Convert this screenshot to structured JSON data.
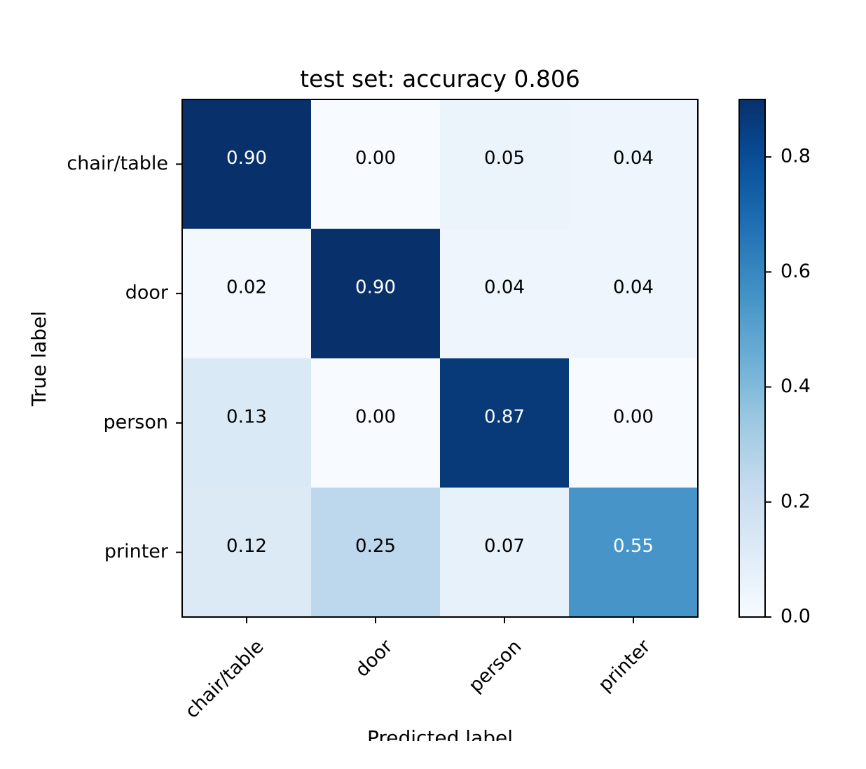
{
  "chart_data": {
    "type": "heatmap",
    "title": "test set: accuracy 0.806",
    "xlabel": "Predicted label",
    "ylabel": "True label",
    "x_categories": [
      "chair/table",
      "door",
      "person",
      "printer"
    ],
    "y_categories": [
      "chair/table",
      "door",
      "person",
      "printer"
    ],
    "values": [
      [
        0.9,
        0.0,
        0.05,
        0.04
      ],
      [
        0.02,
        0.9,
        0.04,
        0.04
      ],
      [
        0.13,
        0.0,
        0.87,
        0.0
      ],
      [
        0.12,
        0.25,
        0.07,
        0.55
      ]
    ],
    "value_labels": [
      [
        "0.90",
        "0.00",
        "0.05",
        "0.04"
      ],
      [
        "0.02",
        "0.90",
        "0.04",
        "0.04"
      ],
      [
        "0.13",
        "0.00",
        "0.87",
        "0.00"
      ],
      [
        "0.12",
        "0.25",
        "0.07",
        "0.55"
      ]
    ],
    "colormap": "Blues",
    "vmin": 0.0,
    "vmax": 0.9,
    "colorbar_ticks": [
      0.0,
      0.2,
      0.4,
      0.6,
      0.8
    ],
    "colorbar_tick_labels": [
      "0.0",
      "0.2",
      "0.4",
      "0.6",
      "0.8"
    ],
    "colors": {
      "text_dark": "#000000",
      "text_light": "#ffffff"
    }
  }
}
